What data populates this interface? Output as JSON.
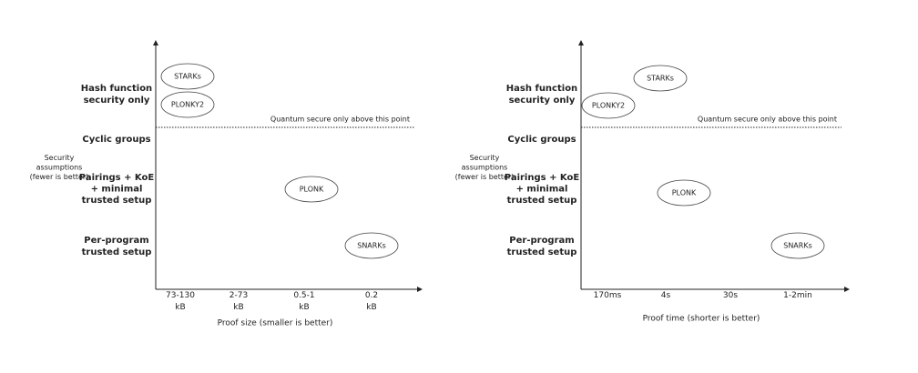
{
  "panels": [
    {
      "side_label": [
        "Security",
        "assumptions",
        "(fewer is better)"
      ],
      "y_labels": [
        [
          "Hash function",
          "security only"
        ],
        [
          "Cyclic groups"
        ],
        [
          "Pairings + KoE",
          "+ minimal",
          "trusted setup"
        ],
        [
          "Per-program",
          "trusted setup"
        ]
      ],
      "threshold_label": "Quantum secure only above this point",
      "x_labels": [
        [
          "73-130",
          "kB"
        ],
        [
          "2-73",
          "kB"
        ],
        [
          "0.5-1",
          "kB"
        ],
        [
          "0.2",
          "kB"
        ]
      ],
      "x_title": "Proof size (smaller is better)",
      "nodes": [
        {
          "label": "STARKs"
        },
        {
          "label": "PLONKY2"
        },
        {
          "label": "PLONK"
        },
        {
          "label": "SNARKs"
        }
      ]
    },
    {
      "side_label": [
        "Security",
        "assumptions",
        "(fewer is better)"
      ],
      "y_labels": [
        [
          "Hash function",
          "security only"
        ],
        [
          "Cyclic groups"
        ],
        [
          "Pairings + KoE",
          "+ minimal",
          "trusted setup"
        ],
        [
          "Per-program",
          "trusted setup"
        ]
      ],
      "threshold_label": "Quantum secure only above this point",
      "x_labels": [
        [
          "170ms"
        ],
        [
          "4s"
        ],
        [
          "30s"
        ],
        [
          "1-2min"
        ]
      ],
      "x_title": "Proof time (shorter is better)",
      "nodes": [
        {
          "label": "STARKs"
        },
        {
          "label": "PLONKY2"
        },
        {
          "label": "PLONK"
        },
        {
          "label": "SNARKs"
        }
      ]
    }
  ]
}
